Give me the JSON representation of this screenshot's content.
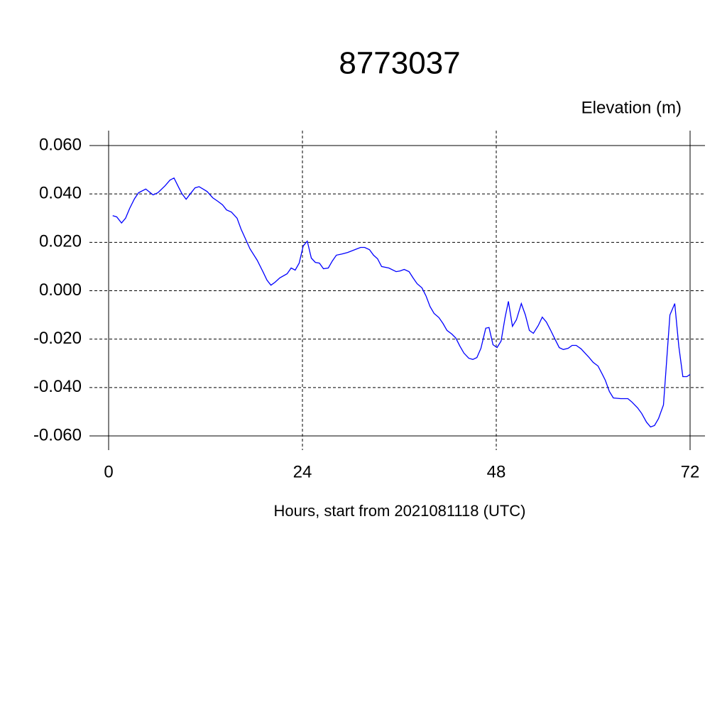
{
  "chart_data": {
    "type": "line",
    "title": "8773037",
    "ylabel": "Elevation (m)",
    "xlabel": "Hours, start from 2021081118 (UTC)",
    "xlim": [
      0,
      72
    ],
    "xticks": [
      0,
      24,
      48,
      72
    ],
    "ylim": [
      -0.06,
      0.06
    ],
    "yticks": [
      {
        "value": -0.06,
        "label": "-0.060"
      },
      {
        "value": -0.04,
        "label": "-0.040"
      },
      {
        "value": -0.02,
        "label": "-0.020"
      },
      {
        "value": 0,
        "label": "0.000"
      },
      {
        "value": 0.02,
        "label": "0.020"
      },
      {
        "value": 0.04,
        "label": "0.040"
      },
      {
        "value": 0.06,
        "label": "0.060"
      }
    ],
    "grid": true,
    "series": [
      {
        "color": "#0000ff",
        "x": [
          0.5,
          1.0,
          1.6,
          2.1,
          2.6,
          3.2,
          3.7,
          4.6,
          5.5,
          6.1,
          7.0,
          7.6,
          8.1,
          8.7,
          9.1,
          9.6,
          10.1,
          10.7,
          11.2,
          11.7,
          12.2,
          12.9,
          13.5,
          14.1,
          14.6,
          15.2,
          15.9,
          16.4,
          17.0,
          17.5,
          18.4,
          19.1,
          19.6,
          20.1,
          20.6,
          21.2,
          22.1,
          22.6,
          23.1,
          23.6,
          24.1,
          24.6,
          25.1,
          25.6,
          26.1,
          26.6,
          27.2,
          27.7,
          28.2,
          28.9,
          29.6,
          30.5,
          31.2,
          31.7,
          32.3,
          32.8,
          33.3,
          33.8,
          34.7,
          35.6,
          36.1,
          36.6,
          37.2,
          37.7,
          38.2,
          38.8,
          39.3,
          39.8,
          40.3,
          40.9,
          41.4,
          41.9,
          42.5,
          43.0,
          43.5,
          44.0,
          44.6,
          45.1,
          45.6,
          46.1,
          46.7,
          47.1,
          47.6,
          48.1,
          48.6,
          49.1,
          49.5,
          50.0,
          50.5,
          51.1,
          51.6,
          52.1,
          52.6,
          53.2,
          53.7,
          54.2,
          54.7,
          55.3,
          55.8,
          56.3,
          56.9,
          57.4,
          57.9,
          58.5,
          59.0,
          59.5,
          60.0,
          60.6,
          61.1,
          61.5,
          62.0,
          62.5,
          63.4,
          64.3,
          64.8,
          65.5,
          66.0,
          66.6,
          67.1,
          67.6,
          68.1,
          68.7,
          69.0,
          69.5,
          70.1,
          70.6,
          71.1,
          71.6,
          72.0
        ],
        "values": [
          0.031,
          0.0305,
          0.028,
          0.03,
          0.034,
          0.038,
          0.0405,
          0.042,
          0.0396,
          0.0405,
          0.0434,
          0.0457,
          0.0466,
          0.0425,
          0.04,
          0.0378,
          0.04,
          0.0425,
          0.043,
          0.042,
          0.041,
          0.0384,
          0.037,
          0.0355,
          0.0334,
          0.0325,
          0.03,
          0.0255,
          0.021,
          0.0173,
          0.0126,
          0.0079,
          0.0044,
          0.0023,
          0.0035,
          0.0053,
          0.007,
          0.0094,
          0.0085,
          0.0114,
          0.0185,
          0.0205,
          0.0135,
          0.0117,
          0.0114,
          0.0091,
          0.0094,
          0.0123,
          0.0147,
          0.0152,
          0.0158,
          0.017,
          0.0179,
          0.0179,
          0.017,
          0.0147,
          0.0132,
          0.01,
          0.0094,
          0.0079,
          0.0082,
          0.0088,
          0.0079,
          0.0053,
          0.0029,
          0.0012,
          -0.0021,
          -0.0065,
          -0.0094,
          -0.0111,
          -0.0135,
          -0.0164,
          -0.0179,
          -0.0196,
          -0.0229,
          -0.0258,
          -0.0279,
          -0.0284,
          -0.0276,
          -0.0238,
          -0.0155,
          -0.0152,
          -0.0223,
          -0.0235,
          -0.0208,
          -0.0109,
          -0.0044,
          -0.0147,
          -0.012,
          -0.0053,
          -0.01,
          -0.0164,
          -0.0176,
          -0.0144,
          -0.0109,
          -0.0129,
          -0.0161,
          -0.0202,
          -0.0235,
          -0.0243,
          -0.0238,
          -0.0226,
          -0.0226,
          -0.024,
          -0.0258,
          -0.0276,
          -0.0296,
          -0.0311,
          -0.0343,
          -0.037,
          -0.0416,
          -0.0443,
          -0.0446,
          -0.0446,
          -0.046,
          -0.0484,
          -0.0507,
          -0.0543,
          -0.0563,
          -0.0557,
          -0.0528,
          -0.0472,
          -0.0334,
          -0.01,
          -0.0053,
          -0.0229,
          -0.0355,
          -0.0355,
          -0.0346
        ]
      }
    ]
  }
}
